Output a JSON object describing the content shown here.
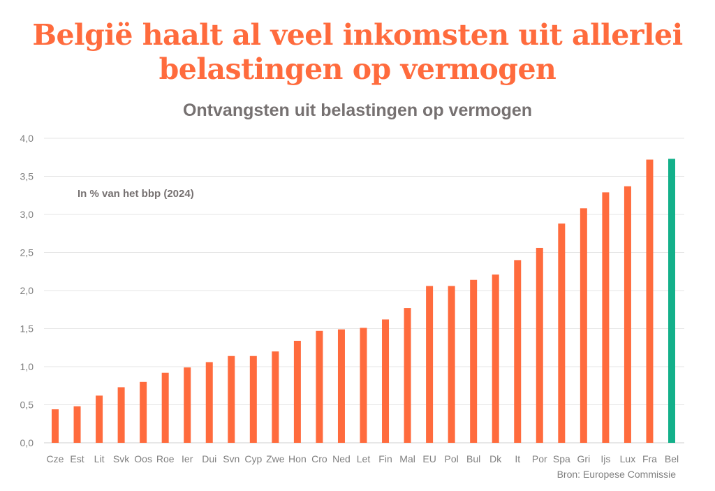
{
  "title_lines": [
    "België haalt al veel inkomsten uit allerlei",
    "belastingen op vermogen"
  ],
  "subtitle": "Ontvangsten uit belastingen op vermogen",
  "unit_note": "In % van het bbp (2024)",
  "source": "Bron: Europese Commissie",
  "colors": {
    "title": "#ff6b3d",
    "bar": "#ff6b3d",
    "highlight": "#13b08a",
    "grid": "#e6e6e6",
    "text": "#7f7f7f"
  },
  "chart_data": {
    "type": "bar",
    "categories": [
      "Cze",
      "Est",
      "Lit",
      "Svk",
      "Oos",
      "Roe",
      "Ier",
      "Dui",
      "Svn",
      "Cyp",
      "Zwe",
      "Hon",
      "Cro",
      "Ned",
      "Let",
      "Fin",
      "Mal",
      "EU",
      "Pol",
      "Bul",
      "Dk",
      "It",
      "Por",
      "Spa",
      "Gri",
      "Ijs",
      "Lux",
      "Fra",
      "Bel"
    ],
    "values": [
      0.44,
      0.48,
      0.62,
      0.73,
      0.8,
      0.92,
      0.99,
      1.06,
      1.14,
      1.14,
      1.2,
      1.34,
      1.47,
      1.49,
      1.51,
      1.62,
      1.77,
      2.06,
      2.06,
      2.14,
      2.21,
      2.4,
      2.56,
      2.88,
      3.08,
      3.29,
      3.37,
      3.72,
      3.73
    ],
    "highlight": "Bel",
    "y_ticks": [
      "0,0",
      "0,5",
      "1,0",
      "1,5",
      "2,0",
      "2,5",
      "3,0",
      "3,5",
      "4,0"
    ],
    "ylim": [
      0,
      4
    ],
    "grid": true
  }
}
